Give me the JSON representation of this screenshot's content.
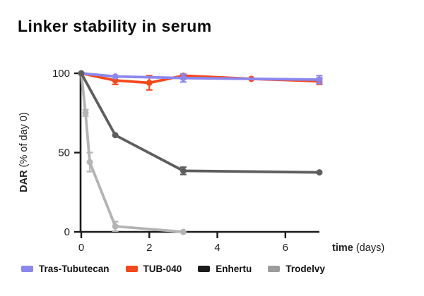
{
  "chart_data": {
    "type": "line",
    "title": "Linker stability in serum",
    "xlabel": {
      "bold": "time",
      "rest": " (days)"
    },
    "ylabel": {
      "bold": "DAR",
      "rest": " (% of day 0)"
    },
    "xticks": [
      0,
      2,
      4,
      6
    ],
    "yticks": [
      0,
      50,
      100
    ],
    "xlim": [
      0,
      7
    ],
    "ylim": [
      0,
      100
    ],
    "grid": false,
    "legend_position": "bottom",
    "axis_color": "#1a1a1a",
    "series": [
      {
        "name": "Tras-Tubutecan",
        "color": "#8c87ee",
        "z": 2,
        "x": [
          0,
          1,
          3,
          7
        ],
        "y": [
          100,
          98,
          97,
          96
        ],
        "err": [
          0,
          0,
          2.5,
          2.5
        ]
      },
      {
        "name": "TUB-040",
        "color": "#f3491f",
        "z": 1,
        "x": [
          0,
          1,
          2,
          3,
          5,
          7
        ],
        "y": [
          100,
          95.5,
          94,
          98.5,
          96.5,
          95
        ],
        "err": [
          0,
          2.5,
          4.5,
          0,
          0,
          2
        ]
      },
      {
        "name": "Enhertu",
        "color": "#5e5e5e",
        "legend_color": "#1b1b1b",
        "z": 4,
        "x": [
          0,
          1,
          3,
          7
        ],
        "y": [
          100,
          61,
          38.5,
          37.5
        ],
        "err": [
          0,
          0,
          2.3,
          0
        ]
      },
      {
        "name": "Trodelvy",
        "color": "#b4b4b4",
        "legend_color": "#9c9c9c",
        "z": 3,
        "x": [
          0,
          0.125,
          0.25,
          1,
          3
        ],
        "y": [
          100,
          75,
          44,
          3.5,
          0
        ],
        "err": [
          0,
          2,
          6,
          3,
          0
        ]
      }
    ]
  }
}
